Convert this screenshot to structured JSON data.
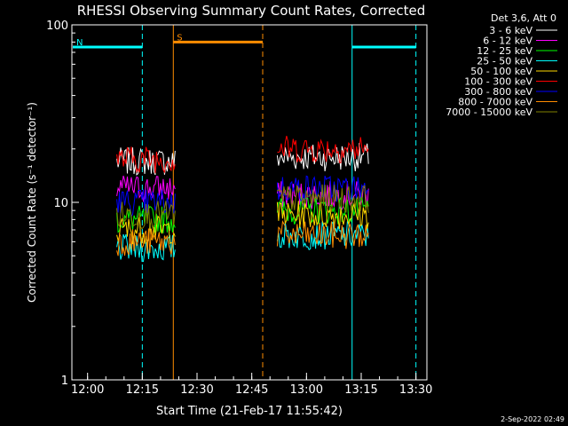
{
  "chart_data": {
    "type": "line",
    "title": "RHESSI Observing Summary Count Rates, Corrected",
    "xlabel": "Start Time (21-Feb-17 11:55:42)",
    "ylabel": "Corrected Count Rate (s⁻¹ detector⁻¹)",
    "yscale": "log",
    "ylim": [
      1,
      100
    ],
    "xlim": [
      "11:55:42",
      "13:33:00"
    ],
    "x_ticks": [
      "12:00",
      "12:15",
      "12:30",
      "12:45",
      "13:00",
      "13:15",
      "13:30"
    ],
    "y_ticks": [
      "1",
      "10",
      "100"
    ],
    "legend_title": "Det 3,6, Att 0",
    "legend_position": "top-right, outside plot",
    "timestamp": "2-Sep-2022 02:49",
    "grid": false,
    "segments": [
      {
        "start": "12:08",
        "end": "12:24"
      },
      {
        "start": "12:52",
        "end": "13:17"
      }
    ],
    "series": [
      {
        "name": "3 - 6 keV",
        "color": "#ffffff",
        "values": [
          17,
          18
        ]
      },
      {
        "name": "6 - 12 keV",
        "color": "#ff00ff",
        "values": [
          12,
          11
        ]
      },
      {
        "name": "12 - 25 keV",
        "color": "#00ff00",
        "values": [
          8,
          9
        ]
      },
      {
        "name": "25 - 50 keV",
        "color": "#00ffff",
        "values": [
          5.5,
          6.5
        ]
      },
      {
        "name": "50 - 100 keV",
        "color": "#ffd700",
        "values": [
          7,
          8.5
        ]
      },
      {
        "name": "100 - 300 keV",
        "color": "#ff0000",
        "values": [
          17.5,
          20
        ]
      },
      {
        "name": "300 - 800 keV",
        "color": "#0000ff",
        "values": [
          10,
          12
        ]
      },
      {
        "name": "800 - 7000 keV",
        "color": "#ff8c00",
        "values": [
          6,
          6.5
        ]
      },
      {
        "name": "7000 - 15000 keV",
        "color": "#808000",
        "values": [
          8.5,
          10.5
        ]
      }
    ],
    "annotations": [
      {
        "label": "N",
        "color": "#00ffff",
        "time_start": "11:55:42",
        "time_end": "12:15:00",
        "level": 75
      },
      {
        "label": "S",
        "color": "#ff8c00",
        "time_start": "12:23:30",
        "time_end": "12:48:00",
        "level": 80
      },
      {
        "label": "",
        "color": "#00ffff",
        "time_start": "13:12:30",
        "time_end": "13:30:00",
        "level": 75
      }
    ]
  }
}
